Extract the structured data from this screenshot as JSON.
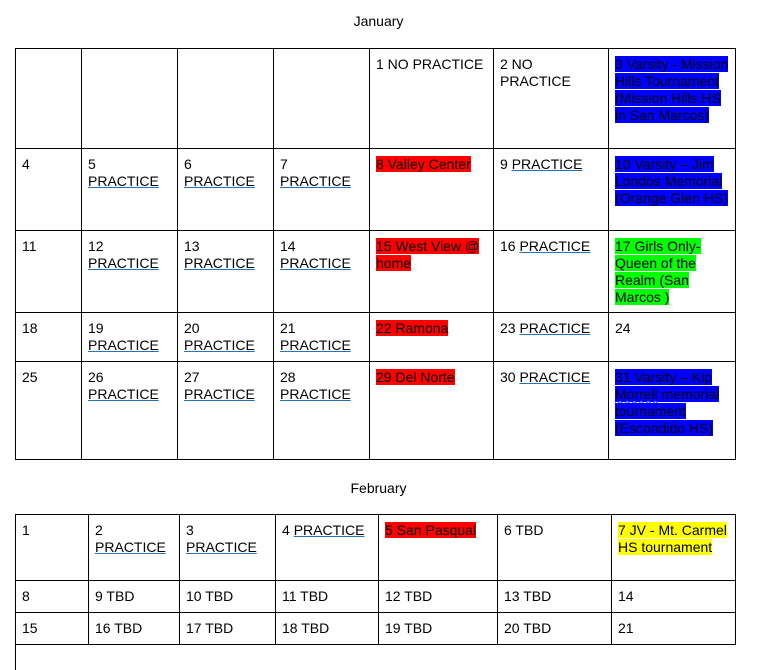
{
  "january": {
    "title": "January",
    "rows": [
      [
        {
          "num": "",
          "text": "",
          "style": "plain"
        },
        {
          "num": "",
          "text": "",
          "style": "plain"
        },
        {
          "num": "",
          "text": "",
          "style": "plain"
        },
        {
          "num": "",
          "text": "",
          "style": "plain"
        },
        {
          "num": "",
          "text": "1 NO PRACTICE",
          "style": "plain"
        },
        {
          "num": "",
          "text": "2 NO PRACTICE",
          "style": "plain"
        },
        {
          "num": "",
          "text": "3 Varsity - Mission Hills Tournament (Mission Hills HS in San Marcos)",
          "style": "blue"
        }
      ],
      [
        {
          "num": "4",
          "text": "",
          "style": "plain"
        },
        {
          "num": "5",
          "text": "PRACTICE",
          "style": "link"
        },
        {
          "num": "6",
          "text": "PRACTICE",
          "style": "link"
        },
        {
          "num": "7",
          "text": "PRACTICE",
          "style": "link"
        },
        {
          "num": "",
          "text": "8 Valley Center",
          "style": "red"
        },
        {
          "num": "9",
          "text": "PRACTICE",
          "style": "link-inline"
        },
        {
          "num": "",
          "text": "10 Varsity – Jim Londos Memorial (Orange Glen HS)",
          "style": "blue"
        }
      ],
      [
        {
          "num": "11",
          "text": "",
          "style": "plain"
        },
        {
          "num": "12",
          "text": "PRACTICE",
          "style": "link"
        },
        {
          "num": "13",
          "text": "PRACTICE",
          "style": "link"
        },
        {
          "num": "14",
          "text": "PRACTICE",
          "style": "link"
        },
        {
          "num": "",
          "text": "15 West View @ home",
          "style": "red"
        },
        {
          "num": "16",
          "text": "PRACTICE",
          "style": "link-inline"
        },
        {
          "num": "",
          "text": "17 Girls Only- Queen of the Realm (San Marcos )",
          "style": "green"
        }
      ],
      [
        {
          "num": "18",
          "text": "",
          "style": "plain"
        },
        {
          "num": "19",
          "text": "PRACTICE",
          "style": "link"
        },
        {
          "num": "20",
          "text": "PRACTICE",
          "style": "link"
        },
        {
          "num": "21",
          "text": "PRACTICE",
          "style": "link"
        },
        {
          "num": "",
          "text": "22 Ramona",
          "style": "red"
        },
        {
          "num": "23",
          "text": "PRACTICE",
          "style": "link-inline"
        },
        {
          "num": "24",
          "text": "",
          "style": "plain"
        }
      ],
      [
        {
          "num": "25",
          "text": "",
          "style": "plain"
        },
        {
          "num": "26",
          "text": "PRACTICE",
          "style": "link"
        },
        {
          "num": "27",
          "text": "PRACTICE",
          "style": "link"
        },
        {
          "num": "28",
          "text": "PRACTICE",
          "style": "link"
        },
        {
          "num": "",
          "text": "29 Del Norte",
          "style": "red"
        },
        {
          "num": "30",
          "text": "PRACTICE",
          "style": "link-inline"
        },
        {
          "num": "",
          "text": "31 Varsity – Kip Morrell memorial tournament (Escondido HS)",
          "style": "blue"
        }
      ]
    ]
  },
  "february": {
    "title": "February",
    "rows": [
      [
        {
          "num": "1",
          "text": "",
          "style": "plain"
        },
        {
          "num": "2",
          "text": "PRACTICE",
          "style": "link"
        },
        {
          "num": "3",
          "text": "PRACTICE",
          "style": "link"
        },
        {
          "num": "4",
          "text": "PRACTICE",
          "style": "link-inline"
        },
        {
          "num": "",
          "text": "5 San Pasqual",
          "style": "red"
        },
        {
          "num": "",
          "text": "6 TBD",
          "style": "plain"
        },
        {
          "num": "",
          "text": "7 JV - Mt. Carmel HS tournament",
          "style": "yellow"
        }
      ],
      [
        {
          "num": "",
          "text": "8",
          "style": "plain"
        },
        {
          "num": "",
          "text": "9 TBD",
          "style": "plain"
        },
        {
          "num": "",
          "text": "10 TBD",
          "style": "plain"
        },
        {
          "num": "",
          "text": "11 TBD",
          "style": "plain"
        },
        {
          "num": "",
          "text": "12 TBD",
          "style": "plain"
        },
        {
          "num": "",
          "text": "13 TBD",
          "style": "plain"
        },
        {
          "num": "",
          "text": "14",
          "style": "plain"
        }
      ],
      [
        {
          "num": "",
          "text": "15",
          "style": "plain"
        },
        {
          "num": "",
          "text": "16 TBD",
          "style": "plain"
        },
        {
          "num": "",
          "text": "17 TBD",
          "style": "plain"
        },
        {
          "num": "",
          "text": "18 TBD",
          "style": "plain"
        },
        {
          "num": "",
          "text": "19 TBD",
          "style": "plain"
        },
        {
          "num": "",
          "text": "20 TBD",
          "style": "plain"
        },
        {
          "num": "",
          "text": "21",
          "style": "plain"
        }
      ]
    ]
  }
}
